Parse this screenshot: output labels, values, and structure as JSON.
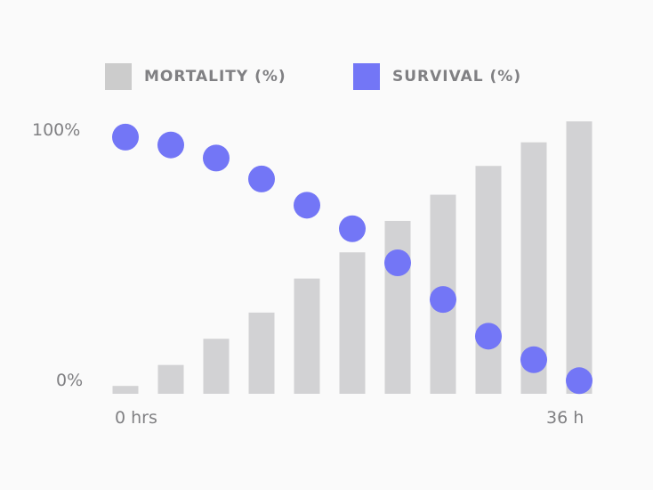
{
  "chart_data": {
    "type": "bar",
    "title": "",
    "x": [
      0,
      3.6,
      7.2,
      10.8,
      14.4,
      18,
      21.6,
      25.2,
      28.8,
      32.4,
      36
    ],
    "x_tick_labels": [
      "0 hrs",
      "36 h"
    ],
    "y_tick_labels": [
      "0%",
      "100%"
    ],
    "ylim": [
      0,
      100
    ],
    "grid": false,
    "legend_position": "top",
    "series": [
      {
        "name": "MORTALITY (%)",
        "mark": "bar",
        "color": "#d2d2d4",
        "legend_color": "#cccccc",
        "values": [
          3,
          11,
          21,
          31,
          44,
          54,
          66,
          76,
          87,
          96,
          104
        ]
      },
      {
        "name": "SURVIVAL (%)",
        "mark": "dot",
        "color": "#7376f6",
        "values": [
          98,
          95,
          90,
          82,
          72,
          63,
          50,
          36,
          22,
          13,
          5
        ]
      }
    ]
  }
}
